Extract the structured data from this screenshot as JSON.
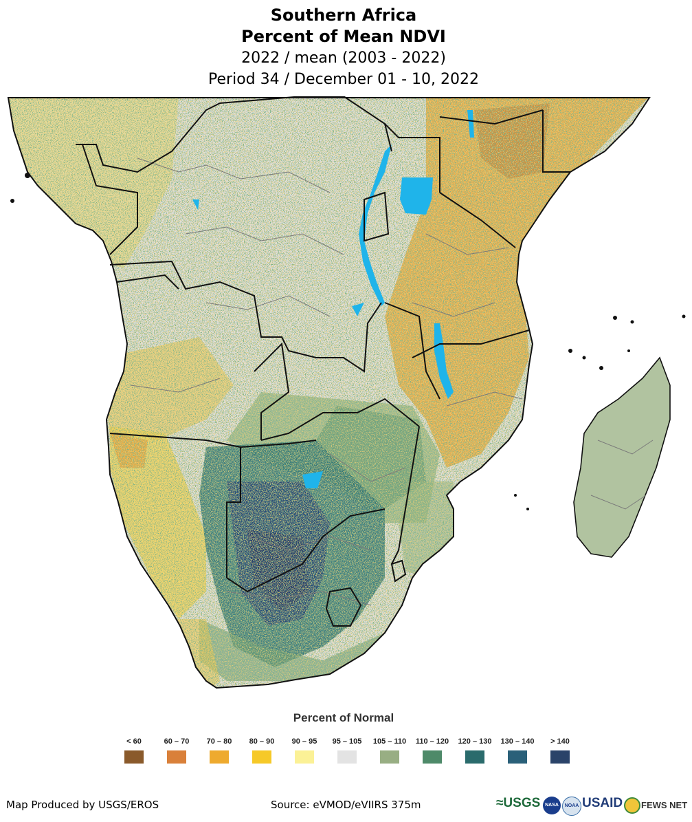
{
  "title": {
    "line1": "Southern Africa",
    "line2": "Percent of Mean NDVI",
    "line3": "2022 / mean (2003 - 2022)",
    "line4": "Period 34 / December 01 - 10, 2022"
  },
  "legend": {
    "title": "Percent of Normal",
    "items": [
      {
        "label": "< 60",
        "color": "#8a5a2b"
      },
      {
        "label": "60 – 70",
        "color": "#d9803a"
      },
      {
        "label": "70 – 80",
        "color": "#eeaa2e"
      },
      {
        "label": "80 – 90",
        "color": "#f6c928"
      },
      {
        "label": "90 – 95",
        "color": "#fbf196"
      },
      {
        "label": "95 – 105",
        "color": "#e3e3e3"
      },
      {
        "label": "105 – 110",
        "color": "#98ae83"
      },
      {
        "label": "110 – 120",
        "color": "#4e8a69"
      },
      {
        "label": "120 – 130",
        "color": "#2a6b6c"
      },
      {
        "label": "130 – 140",
        "color": "#2a6079"
      },
      {
        "label": "> 140",
        "color": "#2a4369"
      }
    ]
  },
  "footer": {
    "producer": "Map Produced by USGS/EROS",
    "source": "Source: eVMOD/eVIIRS 375m",
    "logos": [
      "≈USGS",
      "NASA",
      "NOAA",
      "USAID",
      "FEWS NET"
    ]
  },
  "colors": {
    "lake": "#1fb4ea",
    "border_country": "#111111",
    "border_admin": "#777777"
  }
}
